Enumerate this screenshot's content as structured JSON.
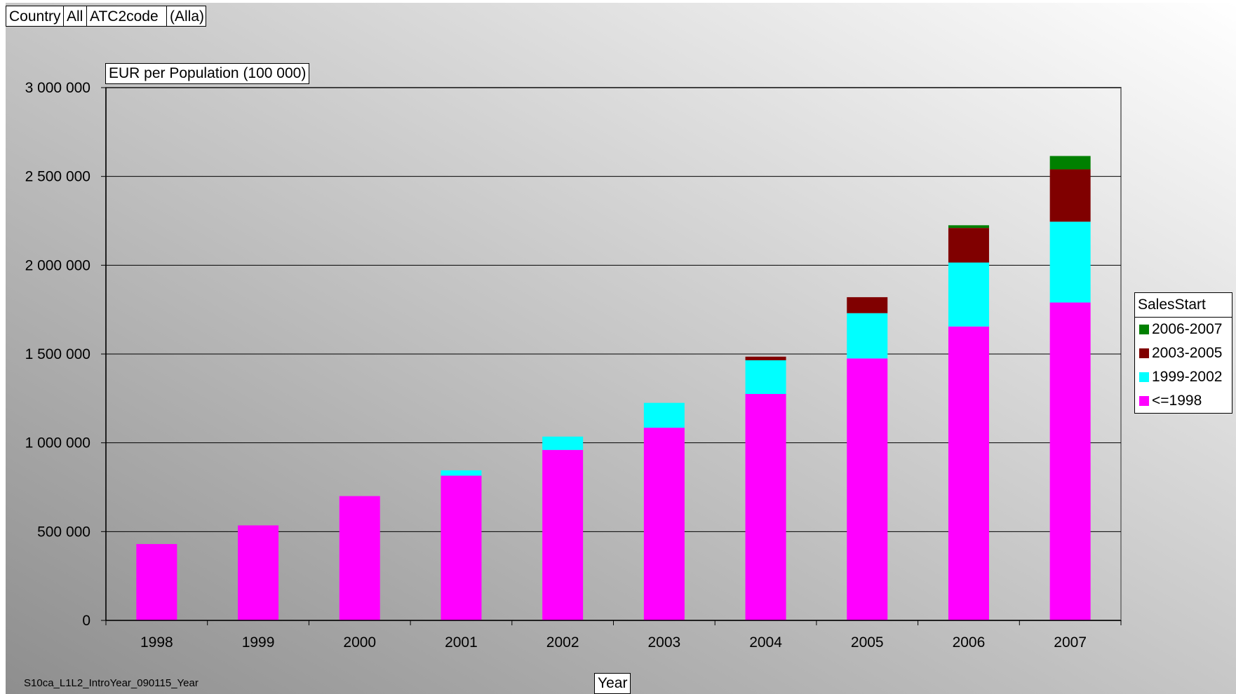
{
  "filters": [
    {
      "label": "Country"
    },
    {
      "label": "All"
    },
    {
      "label": "ATC2code"
    },
    {
      "label": "(Alla)"
    }
  ],
  "footer_note": "S10ca_L1L2_IntroYear_090115_Year",
  "chart_data": {
    "type": "bar",
    "stacked": true,
    "title": "",
    "ylabel": "EUR per Population (100 000)",
    "xlabel": "Year",
    "ylim": [
      0,
      3000000
    ],
    "yticks": [
      0,
      500000,
      1000000,
      1500000,
      2000000,
      2500000,
      3000000
    ],
    "ytick_labels": [
      "0",
      "500 000",
      "1 000 000",
      "1 500 000",
      "2 000 000",
      "2 500 000",
      "3 000 000"
    ],
    "categories": [
      "1998",
      "1999",
      "2000",
      "2001",
      "2002",
      "2003",
      "2004",
      "2005",
      "2006",
      "2007"
    ],
    "series": [
      {
        "name": "<=1998",
        "color": "#FF00FF",
        "values": [
          430000,
          535000,
          700000,
          815000,
          960000,
          1085000,
          1275000,
          1475000,
          1655000,
          1790000
        ]
      },
      {
        "name": "1999-2002",
        "color": "#00FFFF",
        "values": [
          0,
          0,
          0,
          30000,
          75000,
          140000,
          190000,
          255000,
          360000,
          455000
        ]
      },
      {
        "name": "2003-2005",
        "color": "#800000",
        "values": [
          0,
          0,
          0,
          0,
          0,
          0,
          20000,
          90000,
          195000,
          295000
        ]
      },
      {
        "name": "2006-2007",
        "color": "#008000",
        "values": [
          0,
          0,
          0,
          0,
          0,
          0,
          0,
          0,
          15000,
          75000
        ]
      }
    ],
    "grid": true,
    "legend": {
      "title": "SalesStart",
      "placement": "right",
      "order": [
        "2006-2007",
        "2003-2005",
        "1999-2002",
        "<=1998"
      ]
    }
  }
}
